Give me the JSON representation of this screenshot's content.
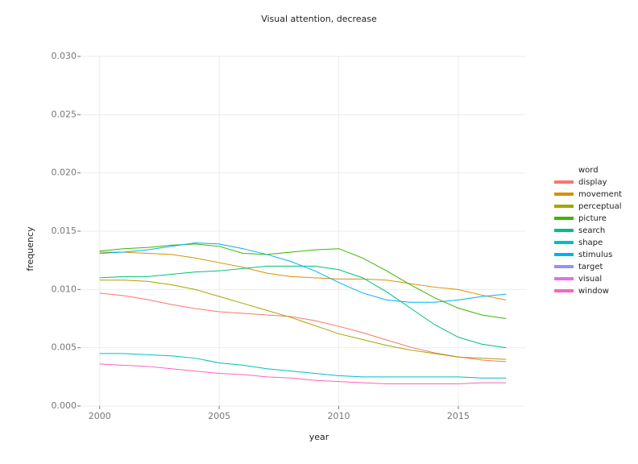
{
  "chart_data": {
    "type": "line",
    "title": "Visual attention, decrease",
    "xlabel": "year",
    "ylabel": "frequency",
    "legend_title": "word",
    "legend": "right",
    "grid": true,
    "x": [
      2000,
      2001,
      2002,
      2003,
      2004,
      2005,
      2006,
      2007,
      2008,
      2009,
      2010,
      2011,
      2012,
      2013,
      2014,
      2015,
      2016,
      2017
    ],
    "xlim": [
      1999.2,
      2017.8
    ],
    "xticks": [
      2000,
      2005,
      2010,
      2015
    ],
    "ylim": [
      0,
      0.03
    ],
    "yticks": [
      {
        "value": 0,
        "label": "0.000"
      },
      {
        "value": 0.005,
        "label": "0.005"
      },
      {
        "value": 0.01,
        "label": "0.010"
      },
      {
        "value": 0.015,
        "label": "0.015"
      },
      {
        "value": 0.02,
        "label": "0.020"
      },
      {
        "value": 0.025,
        "label": "0.025"
      },
      {
        "value": 0.03,
        "label": "0.030"
      }
    ],
    "series": [
      {
        "name": "display",
        "color": "#F8766D",
        "values": [
          0.00968,
          0.00947,
          0.00913,
          0.00871,
          0.00836,
          0.00809,
          0.00795,
          0.00781,
          0.00767,
          0.00733,
          0.00684,
          0.00629,
          0.00567,
          0.00505,
          0.00456,
          0.00422,
          0.00394,
          0.0038
        ]
      },
      {
        "name": "movement",
        "color": "#D89000",
        "values": [
          0.0132,
          0.0132,
          0.0131,
          0.013,
          0.0127,
          0.0123,
          0.0119,
          0.0114,
          0.0111,
          0.011,
          0.0109,
          0.0109,
          0.0108,
          0.0105,
          0.0102,
          0.01,
          0.0095,
          0.0091
        ]
      },
      {
        "name": "perceptual",
        "color": "#A3A500",
        "values": [
          0.0108,
          0.0108,
          0.0107,
          0.0104,
          0.01,
          0.0094,
          0.0088,
          0.0082,
          0.0076,
          0.0069,
          0.0062,
          0.0057,
          0.0052,
          0.0048,
          0.0045,
          0.0042,
          0.0041,
          0.004
        ]
      },
      {
        "name": "picture",
        "color": "#39B600",
        "values": [
          0.0133,
          0.0135,
          0.0136,
          0.0138,
          0.0139,
          0.0137,
          0.0131,
          0.013,
          0.0132,
          0.0134,
          0.0135,
          0.0127,
          0.0116,
          0.0104,
          0.0093,
          0.0084,
          0.0078,
          0.0075
        ]
      },
      {
        "name": "search",
        "color": "#00BF7D",
        "values": [
          0.011,
          0.0111,
          0.0111,
          0.0113,
          0.0115,
          0.0116,
          0.0118,
          0.012,
          0.012,
          0.012,
          0.0117,
          0.011,
          0.0098,
          0.0084,
          0.007,
          0.0059,
          0.0053,
          0.005
        ]
      },
      {
        "name": "shape",
        "color": "#00BFC4",
        "values": [
          0.0045,
          0.0045,
          0.0044,
          0.0043,
          0.0041,
          0.0037,
          0.0035,
          0.0032,
          0.003,
          0.0028,
          0.0026,
          0.0025,
          0.0025,
          0.0025,
          0.0025,
          0.0025,
          0.0024,
          0.0024
        ]
      },
      {
        "name": "stimulus",
        "color": "#00B0F6",
        "values": [
          0.0131,
          0.0132,
          0.0134,
          0.0137,
          0.014,
          0.0139,
          0.0135,
          0.013,
          0.0124,
          0.0116,
          0.0106,
          0.0097,
          0.0091,
          0.0089,
          0.0089,
          0.0091,
          0.0094,
          0.0096
        ]
      },
      {
        "name": "target",
        "color": "#9590FF",
        "values": [
          null,
          null,
          null,
          null,
          null,
          null,
          null,
          null,
          null,
          null,
          null,
          null,
          null,
          null,
          null,
          null,
          null,
          null
        ]
      },
      {
        "name": "visual",
        "color": "#E76BF3",
        "values": [
          null,
          null,
          null,
          null,
          null,
          null,
          null,
          null,
          null,
          null,
          null,
          null,
          null,
          null,
          null,
          null,
          null,
          null
        ]
      },
      {
        "name": "window",
        "color": "#FF62BC",
        "values": [
          0.0036,
          0.0035,
          0.0034,
          0.0032,
          0.003,
          0.0028,
          0.0027,
          0.0025,
          0.0024,
          0.0022,
          0.0021,
          0.002,
          0.0019,
          0.0019,
          0.0019,
          0.0019,
          0.002,
          0.002
        ]
      }
    ]
  }
}
